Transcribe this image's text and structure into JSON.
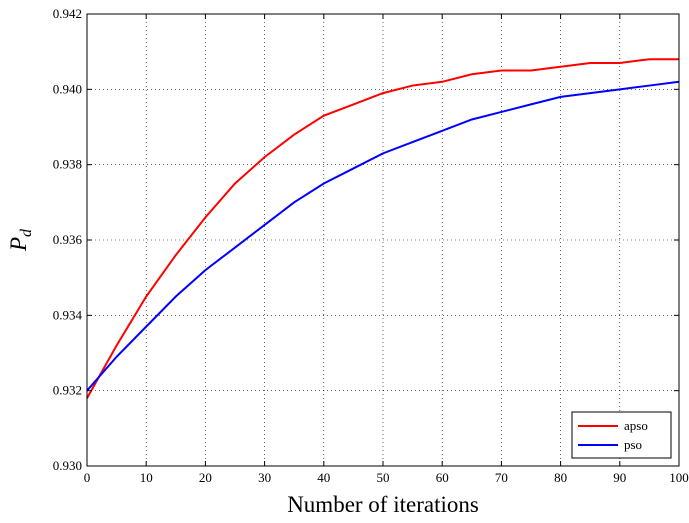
{
  "chart_data": {
    "type": "line",
    "xlabel": "Number of iterations",
    "ylabel": "P",
    "ylabel_subscript": "d",
    "xlim": [
      0,
      100
    ],
    "ylim": [
      0.93,
      0.942
    ],
    "grid": true,
    "legend_position": "bottom-right",
    "x_ticks": [
      "0",
      "10",
      "20",
      "30",
      "40",
      "50",
      "60",
      "70",
      "80",
      "90",
      "100"
    ],
    "y_ticks": [
      "0.930",
      "0.932",
      "0.934",
      "0.936",
      "0.938",
      "0.940",
      "0.942"
    ],
    "x_tick_values": [
      0,
      10,
      20,
      30,
      40,
      50,
      60,
      70,
      80,
      90,
      100
    ],
    "y_tick_values": [
      0.93,
      0.932,
      0.934,
      0.936,
      0.938,
      0.94,
      0.942
    ],
    "x": [
      0,
      5,
      10,
      15,
      20,
      25,
      30,
      35,
      40,
      45,
      50,
      55,
      60,
      65,
      70,
      75,
      80,
      85,
      90,
      95,
      100
    ],
    "series": [
      {
        "name": "apso",
        "color": "#ff0000",
        "values": [
          0.9318,
          0.9332,
          0.9345,
          0.9356,
          0.9366,
          0.9375,
          0.9382,
          0.9388,
          0.9393,
          0.9396,
          0.9399,
          0.9401,
          0.9402,
          0.9404,
          0.9405,
          0.9405,
          0.9406,
          0.9407,
          0.9407,
          0.9408,
          0.9408
        ]
      },
      {
        "name": "pso",
        "color": "#0000ff",
        "values": [
          0.932,
          0.9329,
          0.9337,
          0.9345,
          0.9352,
          0.9358,
          0.9364,
          0.937,
          0.9375,
          0.9379,
          0.9383,
          0.9386,
          0.9389,
          0.9392,
          0.9394,
          0.9396,
          0.9398,
          0.9399,
          0.94,
          0.9401,
          0.9402
        ]
      }
    ]
  }
}
